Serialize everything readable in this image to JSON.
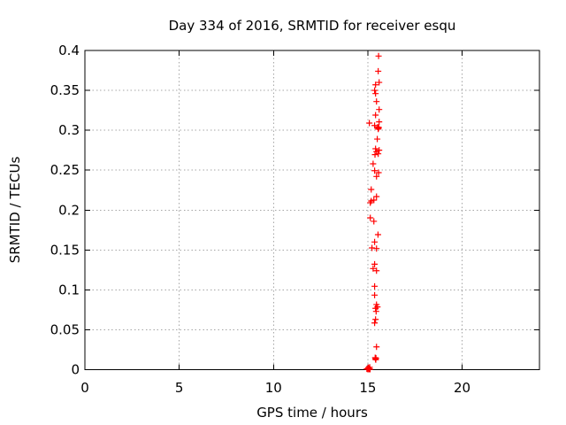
{
  "window": {
    "background": "#ffffff"
  },
  "chart_data": {
    "type": "scatter",
    "title": "Day 334 of 2016, SRMTID for receiver esqu",
    "xlabel": "GPS time / hours",
    "ylabel": "SRMTID / TECUs",
    "xlim": [
      0,
      24.1
    ],
    "ylim": [
      0,
      0.4
    ],
    "grid": true,
    "legend": "none",
    "marker": "plus",
    "marker_color": "#ff0000",
    "grid_color": "#a6a6a6",
    "axis_color": "#000000",
    "xticks": [
      {
        "v": 0,
        "label": "0"
      },
      {
        "v": 5,
        "label": "5"
      },
      {
        "v": 10,
        "label": "10"
      },
      {
        "v": 15,
        "label": "15"
      },
      {
        "v": 20,
        "label": "20"
      }
    ],
    "yticks": [
      {
        "v": 0,
        "label": "0"
      },
      {
        "v": 0.05,
        "label": "0.05"
      },
      {
        "v": 0.1,
        "label": "0.1"
      },
      {
        "v": 0.15,
        "label": "0.15"
      },
      {
        "v": 0.2,
        "label": "0.2"
      },
      {
        "v": 0.25,
        "label": "0.25"
      },
      {
        "v": 0.3,
        "label": "0.3"
      },
      {
        "v": 0.35,
        "label": "0.35"
      },
      {
        "v": 0.4,
        "label": "0.4"
      }
    ],
    "series": [
      {
        "name": "SRMTID",
        "color": "#ff0000",
        "points": [
          [
            15.57,
            0.393
          ],
          [
            15.55,
            0.374
          ],
          [
            15.6,
            0.36
          ],
          [
            15.41,
            0.357
          ],
          [
            15.36,
            0.35
          ],
          [
            15.41,
            0.346
          ],
          [
            15.46,
            0.336
          ],
          [
            15.6,
            0.326
          ],
          [
            15.41,
            0.319
          ],
          [
            15.6,
            0.3105
          ],
          [
            15.08,
            0.309
          ],
          [
            15.36,
            0.306
          ],
          [
            15.52,
            0.304
          ],
          [
            15.58,
            0.3035
          ],
          [
            15.56,
            0.3025
          ],
          [
            15.55,
            0.3015
          ],
          [
            15.5,
            0.289
          ],
          [
            15.41,
            0.2768
          ],
          [
            15.6,
            0.275
          ],
          [
            15.46,
            0.2732
          ],
          [
            15.55,
            0.2705
          ],
          [
            15.38,
            0.2695
          ],
          [
            15.28,
            0.258
          ],
          [
            15.36,
            0.2494
          ],
          [
            15.57,
            0.2469
          ],
          [
            15.46,
            0.2421
          ],
          [
            15.18,
            0.2258
          ],
          [
            15.46,
            0.2169
          ],
          [
            15.32,
            0.2125
          ],
          [
            15.18,
            0.2114
          ],
          [
            15.13,
            0.2092
          ],
          [
            15.13,
            0.1903
          ],
          [
            15.32,
            0.1859
          ],
          [
            15.54,
            0.1692
          ],
          [
            15.36,
            0.16
          ],
          [
            15.22,
            0.1526
          ],
          [
            15.46,
            0.1518
          ],
          [
            15.36,
            0.1322
          ],
          [
            15.28,
            0.1267
          ],
          [
            15.46,
            0.124
          ],
          [
            15.36,
            0.1045
          ],
          [
            15.36,
            0.0934
          ],
          [
            15.46,
            0.0816
          ],
          [
            15.51,
            0.0786
          ],
          [
            15.41,
            0.0768
          ],
          [
            15.44,
            0.073
          ],
          [
            15.41,
            0.063
          ],
          [
            15.36,
            0.0585
          ],
          [
            15.46,
            0.0286
          ],
          [
            15.39,
            0.015
          ],
          [
            15.43,
            0.0145
          ],
          [
            15.41,
            0.0135
          ],
          [
            15.42,
            0.0125
          ],
          [
            14.95,
            0.001
          ],
          [
            15.0,
            0.0005
          ],
          [
            15.02,
            0.0025
          ],
          [
            15.04,
            0.002
          ],
          [
            15.06,
            0.0005
          ],
          [
            15.08,
            0.001
          ],
          [
            15.1,
            0.003
          ],
          [
            15.12,
            0.0005
          ]
        ]
      }
    ]
  }
}
